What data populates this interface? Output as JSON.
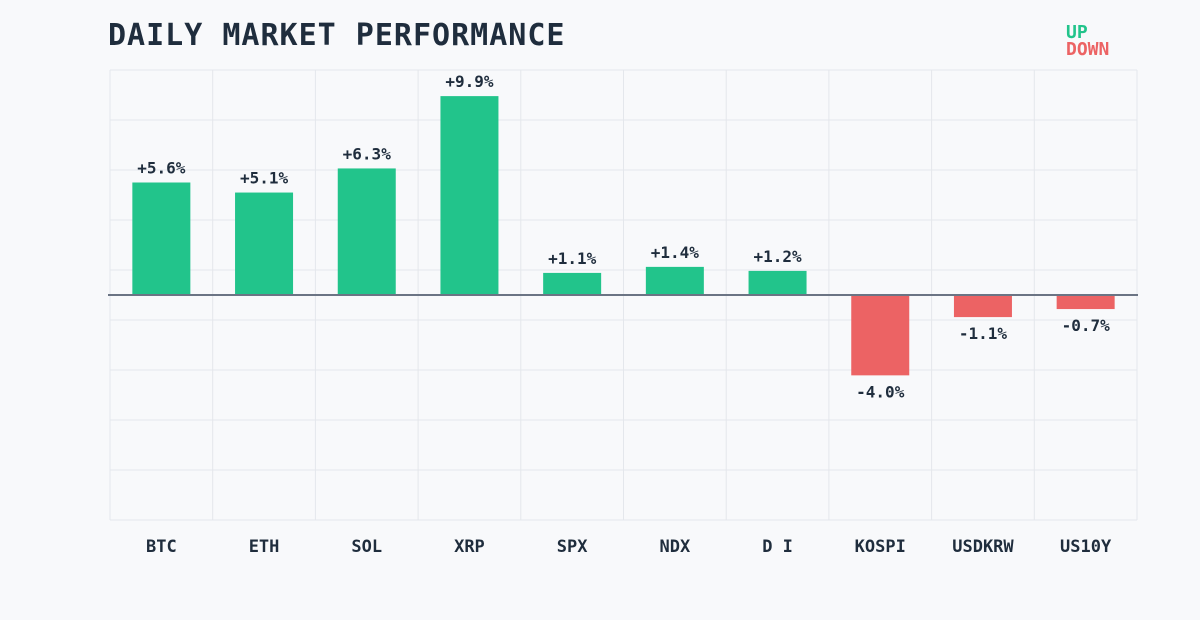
{
  "colors": {
    "up": "#22c48b",
    "down": "#ec6364",
    "text": "#1f2d3d",
    "grid": "#e4e7ec",
    "zero_line": "#6b7484",
    "background": "#f8f9fb"
  },
  "chart_data": {
    "type": "bar",
    "title": "DAILY MARKET PERFORMANCE",
    "xlabel": "",
    "ylabel": "",
    "categories": [
      "BTC",
      "ETH",
      "SOL",
      "XRP",
      "SPX",
      "NDX",
      "D I",
      "KOSPI",
      "USDKRW",
      "US10Y"
    ],
    "values": [
      5.6,
      5.1,
      6.3,
      9.9,
      1.1,
      1.4,
      1.2,
      -4.0,
      -1.1,
      -0.7
    ],
    "data_labels": [
      "+5.6%",
      "+5.1%",
      "+6.3%",
      "+9.9%",
      "+1.1%",
      "+1.4%",
      "+1.2%",
      "-4.0%",
      "-1.1%",
      "-0.7%"
    ],
    "ylim": [
      -11.2,
      11.2
    ],
    "grid": true,
    "legend": {
      "position": "top-right",
      "entries": [
        {
          "label": "UP",
          "color": "#22c48b"
        },
        {
          "label": "DOWN",
          "color": "#ec6364"
        }
      ]
    }
  }
}
